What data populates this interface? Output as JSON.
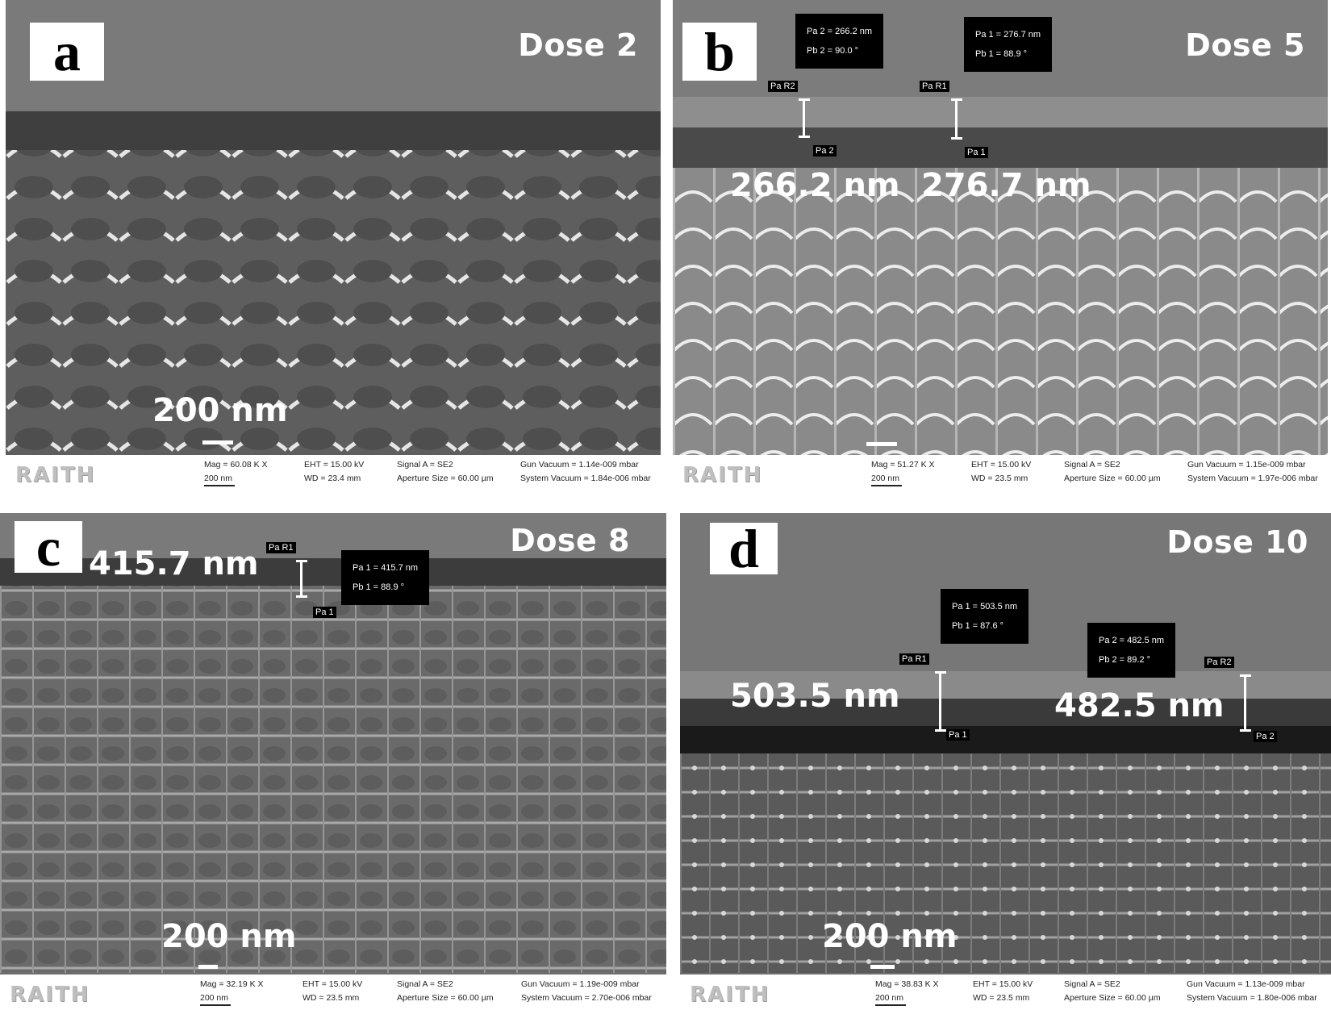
{
  "panels": [
    {
      "letter": "a",
      "dose": "Dose 2",
      "scalebar_label": "200 nm",
      "footer": {
        "brand": "RAITH",
        "mag": "Mag = 60.08 K X",
        "scale": "200 nm",
        "eht": "EHT = 15.00 kV",
        "wd": "WD = 23.4 mm",
        "signal": "Signal A = SE2",
        "aperture": "Aperture Size = 60.00 µm",
        "gun": "Gun Vacuum = 1.14e-009 mbar",
        "system": "System Vacuum = 1.84e-006 mbar"
      }
    },
    {
      "letter": "b",
      "dose": "Dose 5",
      "measurements": [
        {
          "big": "266.2 nm",
          "box": [
            "Pa 2 = 266.2 nm",
            "Pb 2 = 90.0 °"
          ],
          "top_tag": "Pa R2",
          "bottom_tag": "Pa 2"
        },
        {
          "big": "276.7 nm",
          "box": [
            "Pa 1 = 276.7 nm",
            "Pb 1 = 88.9 °"
          ],
          "top_tag": "Pa R1",
          "bottom_tag": "Pa 1"
        }
      ],
      "footer": {
        "brand": "RAITH",
        "mag": "Mag = 51.27 K X",
        "scale": "200 nm",
        "eht": "EHT = 15.00 kV",
        "wd": "WD = 23.5 mm",
        "signal": "Signal A = SE2",
        "aperture": "Aperture Size = 60.00 µm",
        "gun": "Gun Vacuum = 1.15e-009 mbar",
        "system": "System Vacuum = 1.97e-006 mbar"
      }
    },
    {
      "letter": "c",
      "dose": "Dose 8",
      "scalebar_label": "200 nm",
      "measurements": [
        {
          "big": "415.7 nm",
          "box": [
            "Pa 1 = 415.7 nm",
            "Pb 1 = 88.9 °"
          ],
          "top_tag": "Pa R1",
          "bottom_tag": "Pa 1"
        }
      ],
      "footer": {
        "brand": "RAITH",
        "mag": "Mag = 32.19 K X",
        "scale": "200 nm",
        "eht": "EHT = 15.00 kV",
        "wd": "WD = 23.5 mm",
        "signal": "Signal A = SE2",
        "aperture": "Aperture Size = 60.00 µm",
        "gun": "Gun Vacuum = 1.19e-009 mbar",
        "system": "System Vacuum = 2.70e-006 mbar"
      }
    },
    {
      "letter": "d",
      "dose": "Dose 10",
      "scalebar_label": "200 nm",
      "measurements": [
        {
          "big": "503.5 nm",
          "box": [
            "Pa 1 = 503.5 nm",
            "Pb 1 = 87.6 °"
          ],
          "top_tag": "Pa R1",
          "bottom_tag": "Pa 1"
        },
        {
          "big": "482.5 nm",
          "box": [
            "Pa 2 = 482.5 nm",
            "Pb 2 = 89.2 °"
          ],
          "top_tag": "Pa R2",
          "bottom_tag": "Pa 2"
        }
      ],
      "footer": {
        "brand": "RAITH",
        "mag": "Mag = 38.83 K X",
        "scale": "200 nm",
        "eht": "EHT = 15.00 kV",
        "wd": "WD = 23.5 mm",
        "signal": "Signal A = SE2",
        "aperture": "Aperture Size = 60.00 µm",
        "gun": "Gun Vacuum = 1.13e-009 mbar",
        "system": "System Vacuum = 1.80e-006 mbar"
      }
    }
  ]
}
